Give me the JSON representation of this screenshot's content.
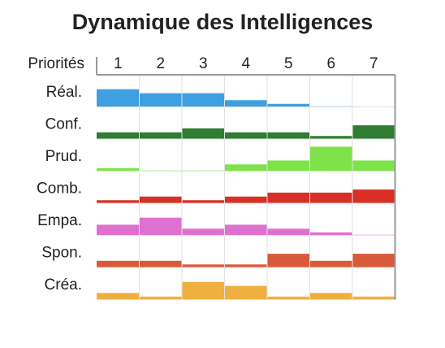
{
  "chart_data": {
    "type": "heatmap",
    "title": "Dynamique des Intelligences",
    "x_header": "Priorités",
    "columns": [
      "1",
      "2",
      "3",
      "4",
      "5",
      "6",
      "7"
    ],
    "rows": [
      {
        "label": "Réal.",
        "color": "#3f9fe0",
        "values": [
          0.58,
          0.45,
          0.45,
          0.22,
          0.1,
          0.02,
          0.0
        ]
      },
      {
        "label": "Conf.",
        "color": "#2f7d32",
        "values": [
          0.22,
          0.22,
          0.35,
          0.22,
          0.22,
          0.1,
          0.45
        ]
      },
      {
        "label": "Prud.",
        "color": "#7ee24a",
        "values": [
          0.1,
          0.02,
          0.02,
          0.22,
          0.35,
          0.8,
          0.35
        ]
      },
      {
        "label": "Comb.",
        "color": "#d93025",
        "values": [
          0.1,
          0.22,
          0.1,
          0.22,
          0.35,
          0.35,
          0.45
        ]
      },
      {
        "label": "Empa.",
        "color": "#e070d0",
        "values": [
          0.35,
          0.58,
          0.22,
          0.35,
          0.22,
          0.1,
          0.02
        ]
      },
      {
        "label": "Spon.",
        "color": "#d95a3a",
        "values": [
          0.22,
          0.22,
          0.1,
          0.1,
          0.45,
          0.22,
          0.45
        ]
      },
      {
        "label": "Créa.",
        "color": "#f0b040",
        "values": [
          0.22,
          0.1,
          0.58,
          0.45,
          0.1,
          0.22,
          0.1
        ]
      }
    ]
  }
}
